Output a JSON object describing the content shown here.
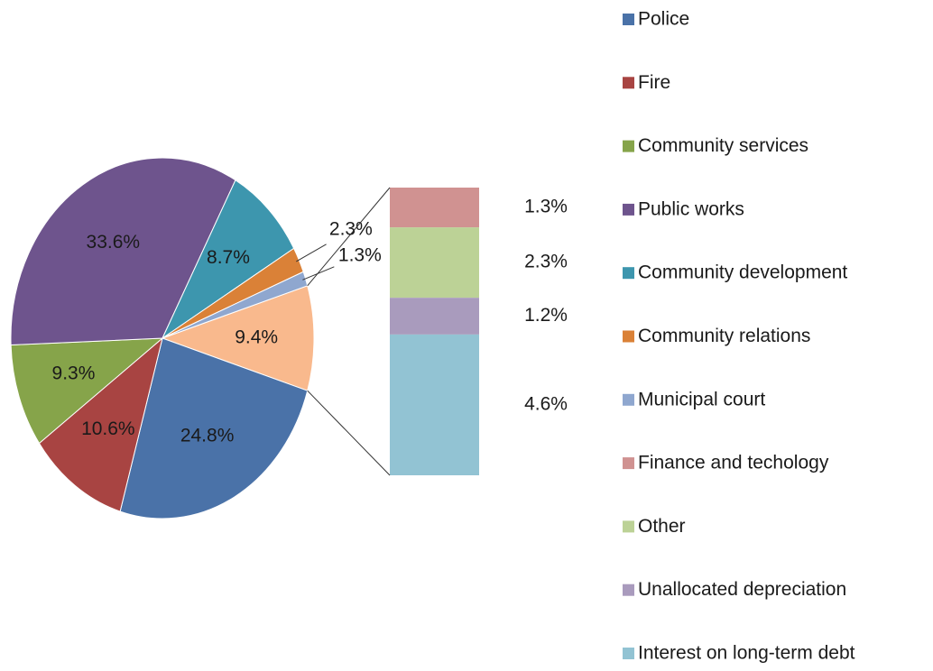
{
  "chart_data": {
    "type": "pie",
    "categories": [
      "Police",
      "Fire",
      "Community services",
      "Public works",
      "Community development",
      "Community relations",
      "Municipal court",
      "Finance and techology",
      "Other",
      "Unallocated depreciation",
      "Interest on long-term debt"
    ],
    "values": [
      24.8,
      10.6,
      9.3,
      33.6,
      8.7,
      2.3,
      1.3,
      1.3,
      2.3,
      1.2,
      4.6
    ],
    "value_labels": [
      "24.8%",
      "10.6%",
      "9.3%",
      "33.6%",
      "8.7%",
      "2.3%",
      "1.3%",
      "1.3%",
      "2.3%",
      "1.2%",
      "4.6%"
    ],
    "colors": [
      "#4a72a8",
      "#a84442",
      "#86a44a",
      "#6e548d",
      "#3d96ae",
      "#da8137",
      "#8fa7cf",
      "#d09291",
      "#bcd296",
      "#a99bbd",
      "#92c3d3"
    ],
    "secondary_count": 4,
    "other": {
      "value": 9.4,
      "label": "9.4%",
      "color": "#f9b98d"
    }
  }
}
